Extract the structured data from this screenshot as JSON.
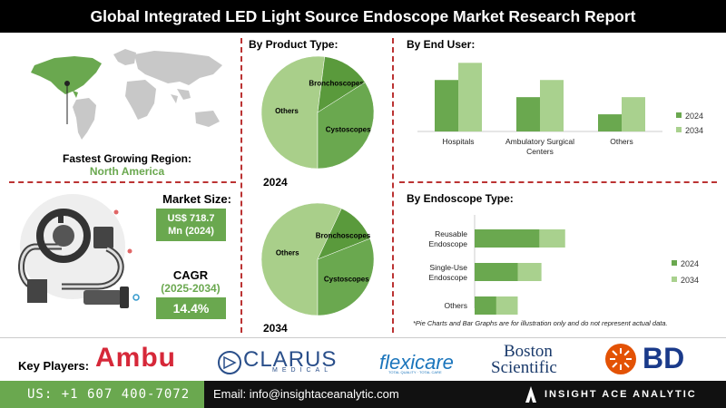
{
  "title": "Global Integrated LED Light Source Endoscope Market Research Report",
  "region": {
    "label": "Fastest Growing Region:",
    "value": "North America"
  },
  "market_size": {
    "label": "Market Size:",
    "value": "US$ 718.7 Mn (2024)"
  },
  "cagr": {
    "label": "CAGR",
    "period": "(2025-2034)",
    "value": "14.4%"
  },
  "product_type": {
    "heading": "By Product Type:",
    "year1": "2024",
    "year2": "2034"
  },
  "end_user": {
    "heading": "By  End User:"
  },
  "endoscope_type": {
    "heading": "By Endoscope Type:"
  },
  "disclaimer": "*Pie Charts and Bar Graphs are for illustration only and do not represent actual data.",
  "key_players": {
    "label": "Key Players:",
    "logos": [
      "Ambu",
      "CLARUS",
      "MEDICAL",
      "flexicare",
      "TOTAL QUALITY · TOTAL CARE",
      "Boston",
      "Scientific",
      "BD"
    ]
  },
  "footer": {
    "phone": "US: +1 607 400-7072",
    "email": "Email: info@insightaceanalytic.com",
    "brand": "INSIGHT ACE ANALYTIC"
  },
  "colors": {
    "dark_green": "#5a9a3c",
    "mid_green": "#6aa84f",
    "light_green": "#a9d18e",
    "pie_light": "#a9cf8a",
    "accent_red": "#b33"
  },
  "chart_data": [
    {
      "type": "pie",
      "title": "2024",
      "series": [
        {
          "name": "Others",
          "value": 52
        },
        {
          "name": "Bronchoscopes",
          "value": 14
        },
        {
          "name": "Cystoscopes",
          "value": 34
        }
      ]
    },
    {
      "type": "pie",
      "title": "2034",
      "series": [
        {
          "name": "Others",
          "value": 57
        },
        {
          "name": "Bronchoscopes",
          "value": 12
        },
        {
          "name": "Cystoscopes",
          "value": 31
        }
      ]
    },
    {
      "type": "bar",
      "title": "By  End User:",
      "categories": [
        "Hospitals",
        "Ambulatory Surgical Centers",
        "Others"
      ],
      "series": [
        {
          "name": "2024",
          "values": [
            45,
            30,
            15
          ]
        },
        {
          "name": "2034",
          "values": [
            60,
            45,
            30
          ]
        }
      ],
      "ylim": [
        0,
        65
      ]
    },
    {
      "type": "bar",
      "orientation": "horizontal",
      "title": "By Endoscope Type:",
      "categories": [
        "Reusable Endoscope",
        "Single-Use Endoscope",
        "Others"
      ],
      "series": [
        {
          "name": "2024",
          "values": [
            30,
            20,
            10
          ]
        },
        {
          "name": "2034",
          "values": [
            42,
            31,
            20
          ]
        }
      ],
      "xlim": [
        0,
        80
      ]
    }
  ]
}
